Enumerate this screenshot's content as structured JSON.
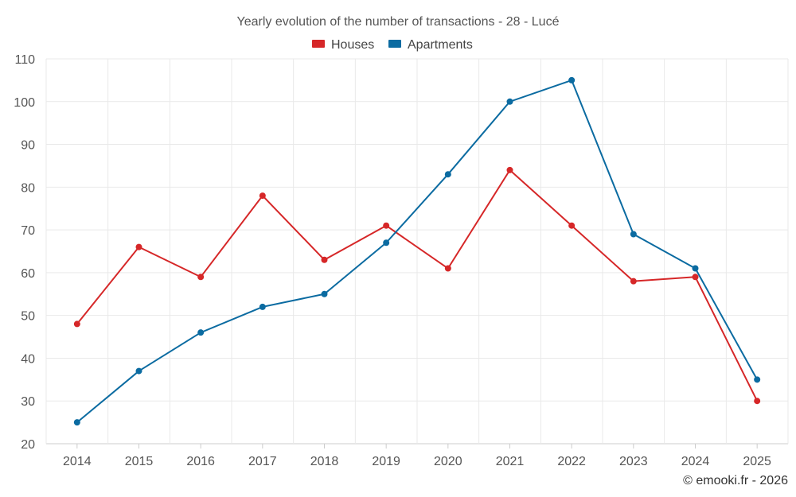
{
  "chart_data": {
    "type": "line",
    "title": "Yearly evolution of the number of transactions - 28 - Lucé",
    "categories": [
      "2014",
      "2015",
      "2016",
      "2017",
      "2018",
      "2019",
      "2020",
      "2021",
      "2022",
      "2023",
      "2024",
      "2025"
    ],
    "series": [
      {
        "name": "Houses",
        "color": "#d62728",
        "values": [
          48,
          66,
          59,
          78,
          63,
          71,
          61,
          84,
          71,
          58,
          59,
          30
        ]
      },
      {
        "name": "Apartments",
        "color": "#0b6ba1",
        "values": [
          25,
          37,
          46,
          52,
          55,
          67,
          83,
          100,
          105,
          69,
          61,
          35
        ]
      }
    ],
    "yticks": [
      20,
      30,
      40,
      50,
      60,
      70,
      80,
      90,
      100,
      110
    ],
    "ylim": [
      20,
      110
    ],
    "xlabel": "",
    "ylabel": "",
    "grid": true,
    "legend_position": "top-center"
  },
  "credit": "© emooki.fr - 2026"
}
